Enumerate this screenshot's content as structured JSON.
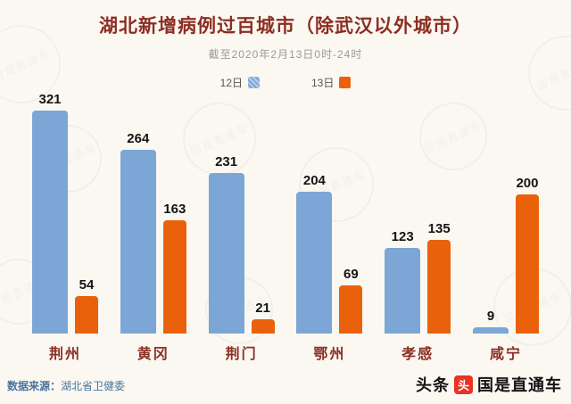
{
  "chart_data": {
    "type": "bar",
    "title": "湖北新增病例过百城市（除武汉以外城市）",
    "subtitle": "截至2020年2月13日0时-24时",
    "categories": [
      "荆州",
      "黄冈",
      "荆门",
      "鄂州",
      "孝感",
      "咸宁"
    ],
    "series": [
      {
        "name": "12日",
        "color": "#7CA6D6",
        "pattern": "striped",
        "values": [
          321,
          264,
          231,
          204,
          123,
          9
        ]
      },
      {
        "name": "13日",
        "color": "#E9620B",
        "pattern": "solid",
        "values": [
          54,
          163,
          21,
          69,
          135,
          200
        ]
      }
    ],
    "ylim": [
      0,
      321
    ],
    "grid": false,
    "legend_position": "top",
    "value_labels": true
  },
  "footer": {
    "source_label": "数据来源：",
    "source_value": "湖北省卫健委",
    "brand_left": "头条",
    "logo_glyph": "头",
    "brand_right": "国是直通车"
  },
  "watermark": {
    "text": "国是直通车"
  },
  "colors": {
    "background": "#FAF8F1",
    "title": "#8C2E23",
    "bar_blue": "#7CA6D6",
    "bar_orange": "#E9620B",
    "value_text": "#141414",
    "source_text": "#49749D"
  }
}
